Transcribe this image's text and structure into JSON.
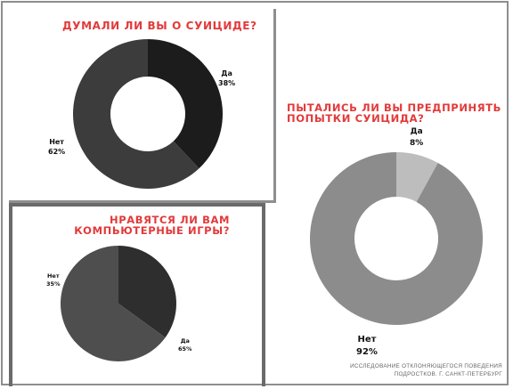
{
  "colors": {
    "title_red": "#e23a3a",
    "dark": "#1c1c1c",
    "mid_dark": "#3c3c3c",
    "mid": "#4e4e4e",
    "gray": "#8c8c8c",
    "light_gray": "#bdbdbd",
    "frame": "#8e8e8e"
  },
  "chart_data": [
    {
      "type": "donut",
      "title": "ДУМАЛИ ЛИ ВЫ О СУИЦИДЕ?",
      "categories": [
        "Да",
        "Нет"
      ],
      "values": [
        38,
        62
      ],
      "value_labels": [
        "38%",
        "62%"
      ],
      "colors": [
        "#1c1c1c",
        "#3c3c3c"
      ]
    },
    {
      "type": "pie",
      "title_lines": [
        "НРАВЯТСЯ ЛИ ВАМ",
        "КОМПЬЮТЕРНЫЕ ИГРЫ?"
      ],
      "categories": [
        "Нет",
        "Да"
      ],
      "values": [
        35,
        65
      ],
      "value_labels": [
        "35%",
        "65%"
      ],
      "colors": [
        "#2e2e2e",
        "#4e4e4e"
      ]
    },
    {
      "type": "donut",
      "title_lines": [
        "ПЫТАЛИСЬ ЛИ ВЫ ПРЕДПРИНЯТЬ",
        "ПОПЫТКИ СУИЦИДА?"
      ],
      "categories": [
        "Да",
        "Нет"
      ],
      "values": [
        8,
        92
      ],
      "value_labels": [
        "8%",
        "92%"
      ],
      "colors": [
        "#bdbdbd",
        "#8c8c8c"
      ]
    }
  ],
  "footnote": {
    "line1": "ИССЛЕДОВАНИЕ ОТКЛОНЯЮЩЕГОСЯ ПОВЕДЕНИЯ",
    "line2": "ПОДРОСТКОВ. Г. САНКТ-ПЕТЕРБУРГ"
  }
}
